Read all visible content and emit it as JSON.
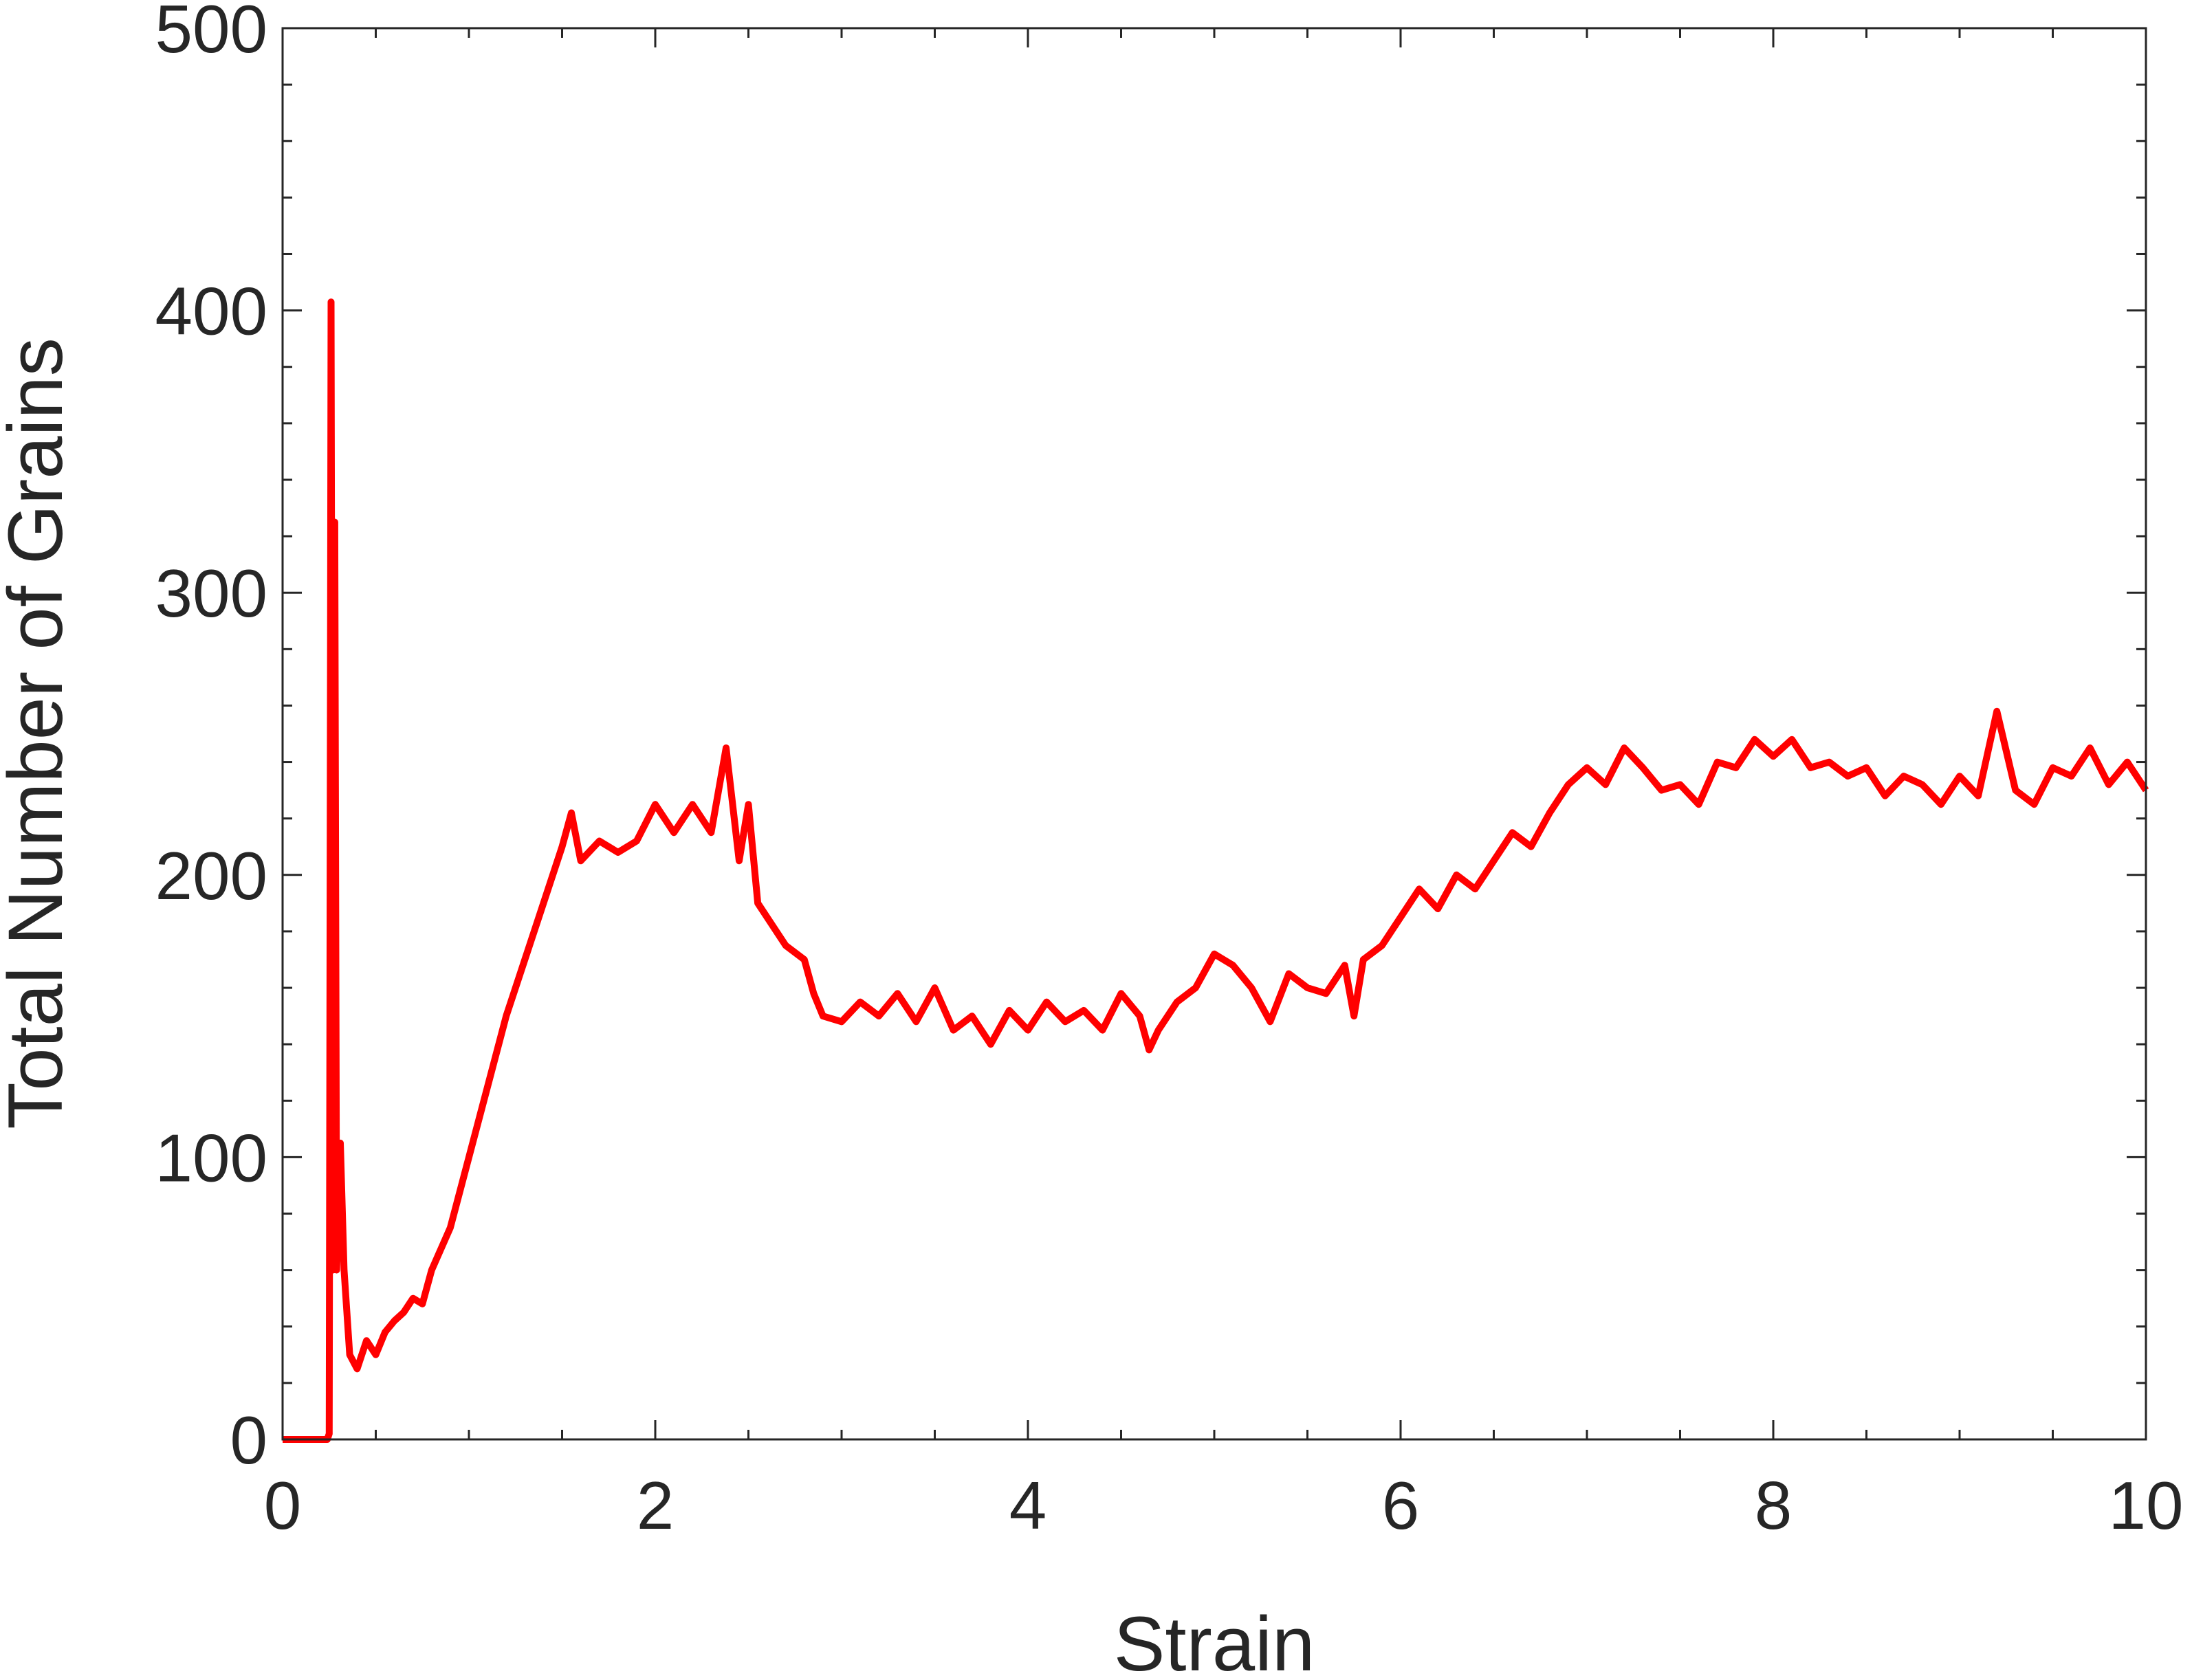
{
  "chart_data": {
    "type": "line",
    "x_label": "Strain",
    "y_label": "Total Number of Grains",
    "x": [
      0,
      0.24,
      0.25,
      0.26,
      0.27,
      0.28,
      0.29,
      0.31,
      0.33,
      0.36,
      0.4,
      0.45,
      0.5,
      0.55,
      0.6,
      0.65,
      0.7,
      0.75,
      0.8,
      0.9,
      1.0,
      1.1,
      1.2,
      1.3,
      1.4,
      1.5,
      1.55,
      1.6,
      1.7,
      1.8,
      1.9,
      2.0,
      2.1,
      2.2,
      2.3,
      2.38,
      2.45,
      2.5,
      2.55,
      2.6,
      2.7,
      2.8,
      2.85,
      2.9,
      3.0,
      3.1,
      3.2,
      3.3,
      3.4,
      3.5,
      3.6,
      3.7,
      3.8,
      3.9,
      4.0,
      4.1,
      4.2,
      4.3,
      4.4,
      4.5,
      4.6,
      4.65,
      4.7,
      4.8,
      4.9,
      5.0,
      5.1,
      5.2,
      5.3,
      5.4,
      5.5,
      5.6,
      5.7,
      5.75,
      5.8,
      5.9,
      6.0,
      6.1,
      6.2,
      6.3,
      6.4,
      6.5,
      6.6,
      6.7,
      6.8,
      6.9,
      7.0,
      7.1,
      7.2,
      7.3,
      7.4,
      7.5,
      7.6,
      7.7,
      7.8,
      7.9,
      8.0,
      8.1,
      8.2,
      8.3,
      8.4,
      8.5,
      8.6,
      8.7,
      8.8,
      8.9,
      9.0,
      9.1,
      9.2,
      9.3,
      9.4,
      9.5,
      9.6,
      9.7,
      9.8,
      9.9,
      10.0
    ],
    "series": [
      {
        "name": "Total Number of Grains",
        "color": "#ff0000",
        "values": [
          0,
          0,
          2,
          403,
          60,
          325,
          60,
          105,
          60,
          30,
          25,
          35,
          30,
          38,
          42,
          45,
          50,
          48,
          60,
          75,
          100,
          125,
          150,
          170,
          190,
          210,
          222,
          205,
          212,
          208,
          212,
          225,
          215,
          225,
          215,
          245,
          205,
          225,
          190,
          185,
          175,
          170,
          158,
          150,
          148,
          155,
          150,
          158,
          148,
          160,
          145,
          150,
          140,
          152,
          145,
          155,
          148,
          152,
          145,
          158,
          150,
          138,
          145,
          155,
          160,
          172,
          168,
          160,
          148,
          165,
          160,
          158,
          168,
          150,
          170,
          175,
          185,
          195,
          188,
          200,
          195,
          205,
          215,
          210,
          222,
          232,
          238,
          232,
          245,
          238,
          230,
          232,
          225,
          240,
          238,
          248,
          242,
          248,
          238,
          240,
          235,
          238,
          228,
          235,
          232,
          225,
          235,
          228,
          258,
          230,
          225,
          238,
          235,
          245,
          232,
          240,
          230
        ]
      }
    ],
    "xlim": [
      0,
      10
    ],
    "xticks": [
      0,
      2,
      4,
      6,
      8,
      10
    ],
    "ylim": [
      0,
      500
    ],
    "yticks": [
      0,
      100,
      200,
      300,
      400,
      500
    ]
  }
}
